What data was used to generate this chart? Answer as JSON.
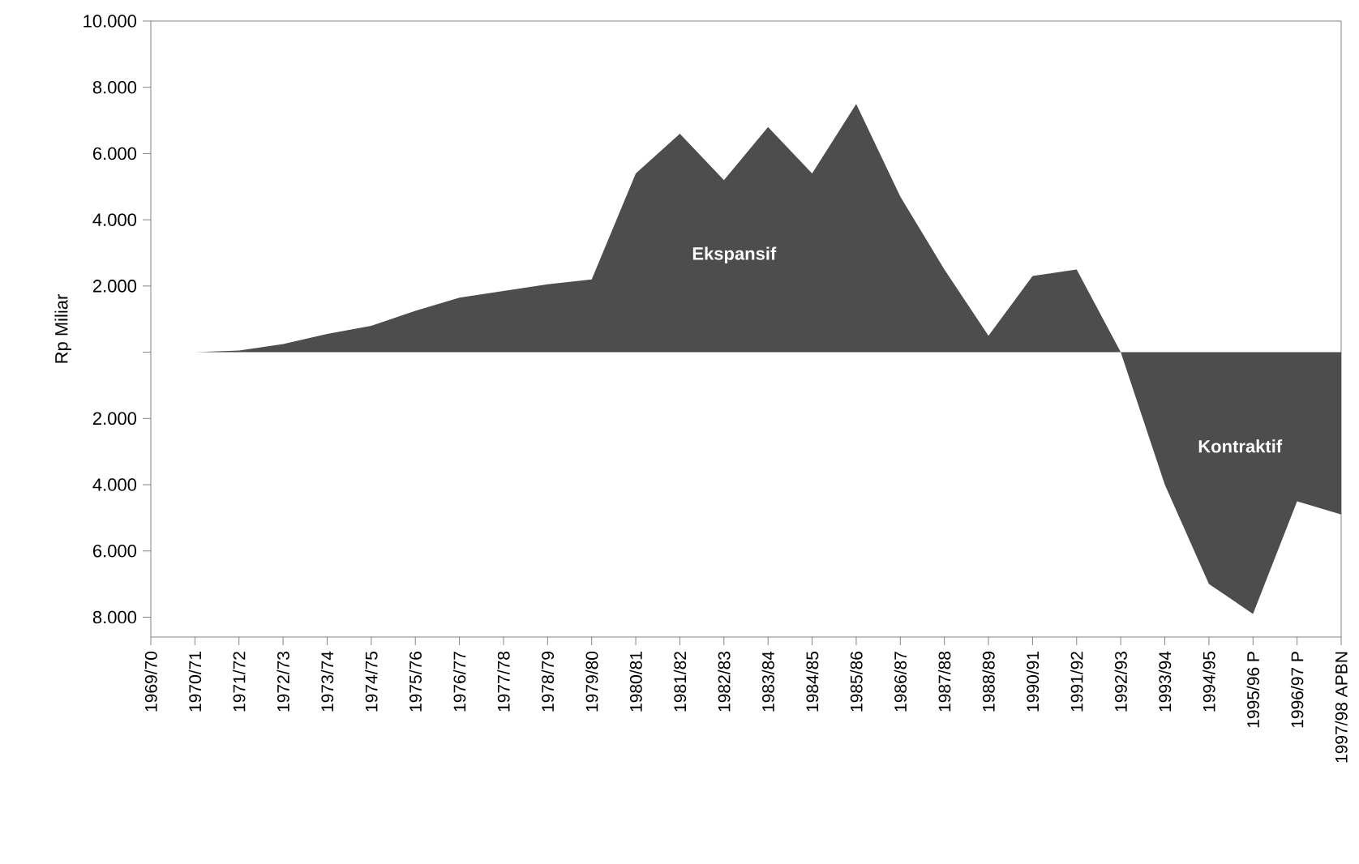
{
  "chart_data": {
    "type": "area",
    "ylabel": "Rp Miliar",
    "categories": [
      "1969/70",
      "1970/71",
      "1971/72",
      "1972/73",
      "1973/74",
      "1974/75",
      "1975/76",
      "1976/77",
      "1977/78",
      "1978/79",
      "1979/80",
      "1980/81",
      "1981/82",
      "1982/83",
      "1983/84",
      "1984/85",
      "1985/86",
      "1986/87",
      "1987/88",
      "1988/89",
      "1990/91",
      "1991/92",
      "1992/93",
      "1993/94",
      "1994/95",
      "1995/96 P",
      "1996/97 P",
      "1997/98 APBN"
    ],
    "series": [
      {
        "color": "#4d4d4d",
        "values": [
          0,
          0,
          50,
          250,
          550,
          800,
          1250,
          1650,
          1850,
          2050,
          2200,
          5400,
          6600,
          5200,
          6800,
          5400,
          7500,
          4700,
          2500,
          500,
          2300,
          2500,
          0,
          -4000,
          -7000,
          -7900,
          -4500,
          -4900
        ]
      }
    ],
    "ylim": [
      -8600,
      10000
    ],
    "yticks": [
      {
        "value": -8000,
        "label": "8.000"
      },
      {
        "value": -6000,
        "label": "6.000"
      },
      {
        "value": -4000,
        "label": "4.000"
      },
      {
        "value": -2000,
        "label": "2.000"
      },
      {
        "value": 0,
        "label": null
      },
      {
        "value": 2000,
        "label": "2.000"
      },
      {
        "value": 4000,
        "label": "4.000"
      },
      {
        "value": 6000,
        "label": "6.000"
      },
      {
        "value": 8000,
        "label": "8.000"
      },
      {
        "value": 10000,
        "label": "10.000"
      }
    ],
    "annotations": [
      "Ekspansif",
      "Kontraktif"
    ]
  }
}
